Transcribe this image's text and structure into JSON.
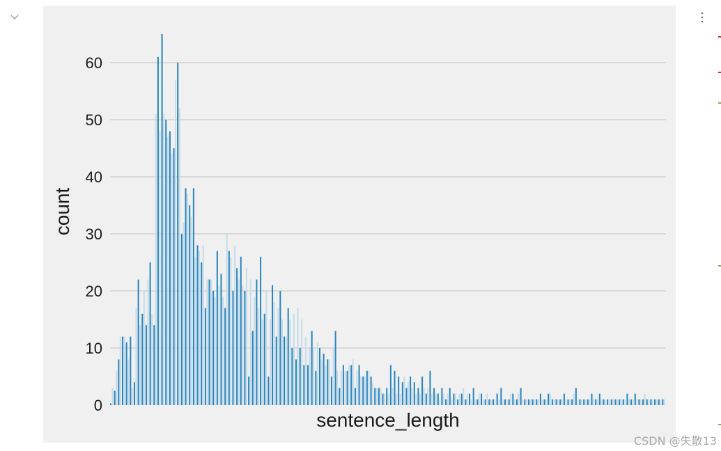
{
  "cell": {
    "collapse_icon": "chevron-down-icon",
    "more_icon": "vertical-ellipsis-icon"
  },
  "watermark": "CSDN @失散13",
  "colors": {
    "figure_bg": "#f0f0f0",
    "grid": "#cbcbcb",
    "bar_dark": "#2a86c0",
    "bar_light": "#c6dce8",
    "edge_mark_red": "#c0392b",
    "edge_mark_olive": "#a39b5a"
  },
  "chart_data": {
    "type": "bar",
    "title": "",
    "xlabel": "sentence_length",
    "ylabel": "count",
    "ylim": [
      0,
      65
    ],
    "yticks": [
      0,
      10,
      20,
      30,
      40,
      50,
      60
    ],
    "x_tick_labels_visible": false,
    "grid": "horizontal",
    "legend": "none",
    "series": [
      {
        "values": [
          0.3,
          2.5,
          8,
          12,
          11,
          12,
          4,
          22,
          16,
          14,
          25,
          14,
          61,
          65,
          50,
          48,
          45,
          60,
          30,
          38,
          35,
          38,
          28,
          25,
          17,
          22,
          20,
          27,
          23,
          17,
          27,
          20,
          24,
          26,
          20,
          5,
          13,
          22,
          26,
          16,
          5,
          21,
          12,
          20,
          12,
          17,
          10,
          8,
          10,
          7,
          7,
          13,
          6,
          10,
          9,
          8,
          5,
          13,
          3,
          7,
          6,
          7,
          3,
          7,
          5,
          6,
          5,
          3,
          3,
          2,
          3,
          7,
          6,
          5,
          4,
          3,
          5,
          4,
          3,
          5,
          2,
          6,
          3,
          2,
          3,
          1,
          3,
          2,
          1,
          2,
          1,
          2,
          3,
          1,
          2,
          1,
          1,
          1,
          2,
          3,
          1,
          1,
          2,
          1,
          3,
          1,
          1,
          1,
          1,
          2,
          1,
          2,
          1,
          1,
          1,
          2,
          1,
          1,
          3,
          1,
          1,
          1,
          2,
          1,
          2,
          1,
          1,
          1,
          1,
          1,
          1,
          2,
          1,
          2,
          1,
          1,
          1,
          1,
          1,
          1,
          1
        ]
      },
      {
        "values": [
          3,
          6,
          12,
          12,
          8,
          3,
          17,
          14,
          20,
          22,
          16,
          51,
          48,
          51,
          47,
          44,
          57,
          52,
          32,
          37,
          33,
          26,
          27,
          28,
          22,
          22,
          19,
          21,
          19,
          30,
          26,
          28,
          22,
          21,
          24,
          22,
          19,
          17,
          15,
          20,
          15,
          18,
          17,
          15,
          12,
          15,
          16,
          17,
          15,
          12,
          10,
          10,
          11,
          8,
          7,
          8,
          10,
          6,
          6,
          6,
          7,
          8,
          6,
          5,
          5,
          6,
          4,
          3,
          3,
          2,
          2,
          3,
          2,
          2,
          5,
          4,
          3,
          2,
          2,
          3,
          3,
          2,
          2,
          1,
          2,
          2,
          1,
          2,
          2,
          3,
          2,
          1,
          1,
          2,
          1,
          2,
          1,
          1,
          1,
          1,
          1,
          2,
          1,
          2,
          1,
          1,
          1,
          1,
          1,
          1,
          1,
          2,
          1,
          1,
          1,
          1,
          1,
          2,
          1,
          1,
          1,
          1,
          1,
          1,
          1,
          1,
          1,
          1,
          1,
          1,
          1,
          1,
          1,
          1,
          1,
          2,
          1,
          1,
          1,
          1,
          1
        ]
      }
    ]
  }
}
